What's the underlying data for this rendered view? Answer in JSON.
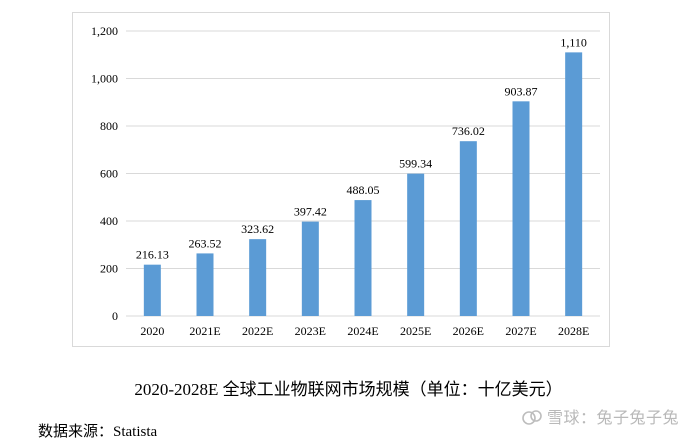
{
  "chart_data": {
    "type": "bar",
    "categories": [
      "2020",
      "2021E",
      "2022E",
      "2023E",
      "2024E",
      "2025E",
      "2026E",
      "2027E",
      "2028E"
    ],
    "values": [
      216.13,
      263.52,
      323.62,
      397.42,
      488.05,
      599.34,
      736.02,
      903.87,
      1110
    ],
    "value_labels": [
      "216.13",
      "263.52",
      "323.62",
      "397.42",
      "488.05",
      "599.34",
      "736.02",
      "903.87",
      "1,110"
    ],
    "yticks": [
      0,
      200,
      400,
      600,
      800,
      1000,
      1200
    ],
    "ytick_labels": [
      "0",
      "200",
      "400",
      "600",
      "800",
      "1,000",
      "1,200"
    ],
    "ylim": [
      0,
      1200
    ],
    "grid": true,
    "bar_color": "#5b9bd5",
    "grid_color": "#d9d9d9"
  },
  "caption": "2020-2028E 全球工业物联网市场规模（单位：十亿美元）",
  "source": "数据来源：Statista",
  "watermark": "雪球：兔子兔子兔"
}
